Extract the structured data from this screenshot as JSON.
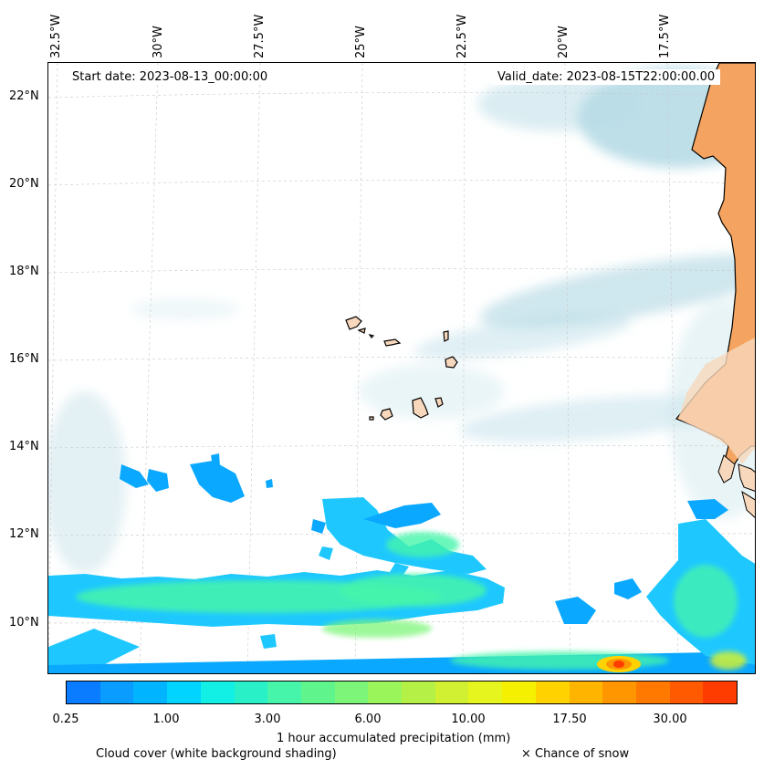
{
  "map": {
    "lon_labels": [
      "32.5°W",
      "30°W",
      "27.5°W",
      "25°W",
      "22.5°W",
      "20°W",
      "17.5°W"
    ],
    "lat_labels": [
      "22°N",
      "20°N",
      "18°N",
      "16°N",
      "14°N",
      "12°N",
      "10°N"
    ],
    "start_date": "Start date: 2023-08-13_00:00:00",
    "valid_date": "Valid_date: 2023-08-15T22:00:00.00"
  },
  "colorbar": {
    "tick_labels": [
      "0.25",
      "1.00",
      "3.00",
      "6.00",
      "10.00",
      "17.50",
      "30.00"
    ],
    "label": "1 hour accumulated precipitation (mm)",
    "colors": [
      "#0a7cff",
      "#0a9cff",
      "#00b4ff",
      "#00d4ff",
      "#12f0e6",
      "#2af0c8",
      "#46f5aa",
      "#60f58c",
      "#7cf578",
      "#9af55a",
      "#b4f046",
      "#d2f032",
      "#e6f51e",
      "#f5f000",
      "#ffd200",
      "#ffb400",
      "#ff9600",
      "#ff7800",
      "#ff5a00",
      "#ff3c00"
    ]
  },
  "footer": {
    "cloud_cover": "Cloud cover (white background shading)",
    "snow": "× Chance of snow"
  },
  "colors": {
    "land": "#f4a460",
    "ocean_cloud": "#a8d4e0",
    "coast": "#000000",
    "grid": "#c8c8c8"
  }
}
